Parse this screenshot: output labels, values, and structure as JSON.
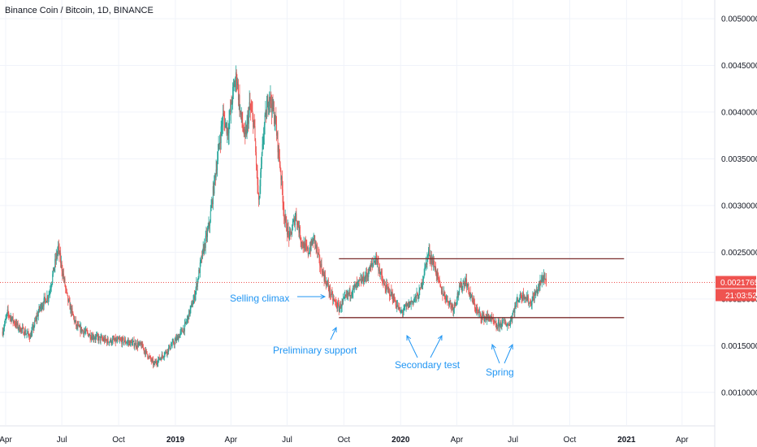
{
  "chart_data": {
    "type": "candlestick",
    "title": "Binance Coin / Bitcoin, 1D, BINANCE",
    "ylim": [
      0.00065,
      0.0052
    ],
    "y_ticks": [
      "0.0010000",
      "0.0015000",
      "0.0020000",
      "0.0025000",
      "0.0030000",
      "0.0035000",
      "0.0040000",
      "0.0045000",
      "0.0050000"
    ],
    "x_ticks": [
      {
        "label": "Apr",
        "t": 0,
        "bold": false
      },
      {
        "label": "Jul",
        "t": 91,
        "bold": false
      },
      {
        "label": "Oct",
        "t": 183,
        "bold": false
      },
      {
        "label": "2019",
        "t": 275,
        "bold": true
      },
      {
        "label": "Apr",
        "t": 365,
        "bold": false
      },
      {
        "label": "Jul",
        "t": 456,
        "bold": false
      },
      {
        "label": "Oct",
        "t": 548,
        "bold": false
      },
      {
        "label": "2020",
        "t": 640,
        "bold": true
      },
      {
        "label": "Apr",
        "t": 731,
        "bold": false
      },
      {
        "label": "Jul",
        "t": 822,
        "bold": false
      },
      {
        "label": "Oct",
        "t": 914,
        "bold": false
      },
      {
        "label": "2021",
        "t": 1006,
        "bold": true
      },
      {
        "label": "Apr",
        "t": 1096,
        "bold": false
      }
    ],
    "price_anchors": [
      [
        -5,
        0.00165
      ],
      [
        3,
        0.00185
      ],
      [
        20,
        0.0017
      ],
      [
        40,
        0.0016
      ],
      [
        55,
        0.0019
      ],
      [
        70,
        0.00205
      ],
      [
        85,
        0.00255
      ],
      [
        100,
        0.002
      ],
      [
        115,
        0.0017
      ],
      [
        140,
        0.0016
      ],
      [
        165,
        0.00155
      ],
      [
        190,
        0.00155
      ],
      [
        220,
        0.0015
      ],
      [
        240,
        0.0013
      ],
      [
        255,
        0.0014
      ],
      [
        275,
        0.00155
      ],
      [
        290,
        0.0017
      ],
      [
        305,
        0.002
      ],
      [
        318,
        0.00245
      ],
      [
        330,
        0.0028
      ],
      [
        338,
        0.00325
      ],
      [
        345,
        0.0036
      ],
      [
        352,
        0.00395
      ],
      [
        360,
        0.0038
      ],
      [
        368,
        0.0042
      ],
      [
        374,
        0.0044
      ],
      [
        380,
        0.004
      ],
      [
        388,
        0.0037
      ],
      [
        395,
        0.00405
      ],
      [
        402,
        0.0039
      ],
      [
        410,
        0.003
      ],
      [
        418,
        0.0038
      ],
      [
        427,
        0.0042
      ],
      [
        437,
        0.0039
      ],
      [
        445,
        0.0034
      ],
      [
        452,
        0.00285
      ],
      [
        460,
        0.00265
      ],
      [
        470,
        0.0029
      ],
      [
        480,
        0.0026
      ],
      [
        490,
        0.0025
      ],
      [
        500,
        0.00265
      ],
      [
        508,
        0.0024
      ],
      [
        518,
        0.0022
      ],
      [
        530,
        0.002
      ],
      [
        540,
        0.0019
      ],
      [
        555,
        0.00205
      ],
      [
        570,
        0.00215
      ],
      [
        585,
        0.00225
      ],
      [
        600,
        0.00245
      ],
      [
        612,
        0.00215
      ],
      [
        625,
        0.00205
      ],
      [
        640,
        0.00185
      ],
      [
        655,
        0.00195
      ],
      [
        670,
        0.00205
      ],
      [
        685,
        0.0025
      ],
      [
        695,
        0.00235
      ],
      [
        705,
        0.0021
      ],
      [
        715,
        0.002
      ],
      [
        725,
        0.0019
      ],
      [
        735,
        0.0021
      ],
      [
        745,
        0.0022
      ],
      [
        755,
        0.002
      ],
      [
        765,
        0.00185
      ],
      [
        775,
        0.0018
      ],
      [
        785,
        0.0018
      ],
      [
        795,
        0.0017
      ],
      [
        805,
        0.00175
      ],
      [
        815,
        0.00172
      ],
      [
        830,
        0.002
      ],
      [
        840,
        0.00205
      ],
      [
        850,
        0.00195
      ],
      [
        858,
        0.00205
      ],
      [
        865,
        0.00215
      ],
      [
        872,
        0.00225
      ],
      [
        876,
        0.00218
      ]
    ],
    "resistance_line": {
      "t_start": 540,
      "t_end": 1002,
      "value": 0.00243
    },
    "support_line": {
      "t_start": 540,
      "t_end": 1002,
      "value": 0.0018
    },
    "last_price": {
      "value": 0.0021765,
      "label": "0.0021765",
      "countdown": "21:03:52"
    },
    "annotations": [
      {
        "text": "Selling climax"
      },
      {
        "text": "Preliminary support"
      },
      {
        "text": "Secondary test"
      },
      {
        "text": "Spring"
      }
    ],
    "colors": {
      "up": "#26a69a",
      "down": "#ef5350",
      "lines": "#7b2c2c",
      "annotation": "#2196f3",
      "price_label": "#ef5350",
      "grid": "#f0f3fa"
    }
  }
}
